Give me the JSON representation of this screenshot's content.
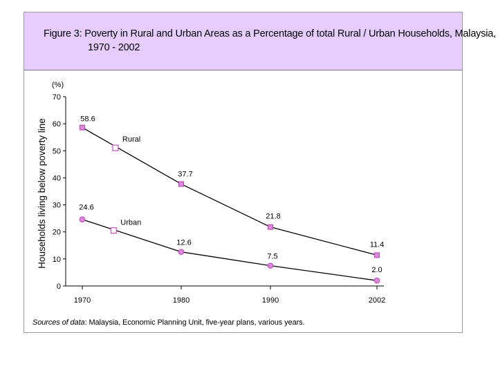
{
  "colors": {
    "title_bg": "#e6ccff",
    "marker": "#c040c0",
    "marker_fill": "#d88ad8",
    "line": "#000000"
  },
  "source": {
    "label": "Sources of data",
    "text": ": Malaysia, Economic Planning Unit, five-year plans, various years."
  },
  "chart_data": {
    "type": "line",
    "title_line1": "Figure 3: Poverty in Rural and Urban Areas as a Percentage of total Rural / Urban Households, Malaysia,",
    "title_line2": "1970 - 2002",
    "ylabel": "Households living below poverty line",
    "yunit": "(%)",
    "ylim": [
      0,
      70
    ],
    "yticks": [
      0,
      10,
      20,
      30,
      40,
      50,
      60,
      70
    ],
    "xlim": [
      1970,
      2002
    ],
    "xticks": [
      1970,
      1980,
      1990,
      2002
    ],
    "grid": false,
    "series": [
      {
        "name": "Rural",
        "marker": "square",
        "x": [
          1970,
          1980,
          1990,
          2002
        ],
        "y": [
          58.6,
          37.7,
          21.8,
          11.4
        ],
        "labels": [
          "58.6",
          "37.7",
          "21.8",
          "11.4"
        ]
      },
      {
        "name": "Urban",
        "marker": "circle",
        "x": [
          1970,
          1980,
          1990,
          2002
        ],
        "y": [
          24.6,
          12.6,
          7.5,
          2.0
        ],
        "labels": [
          "24.6",
          "12.6",
          "7.5",
          "2.0"
        ]
      }
    ]
  }
}
